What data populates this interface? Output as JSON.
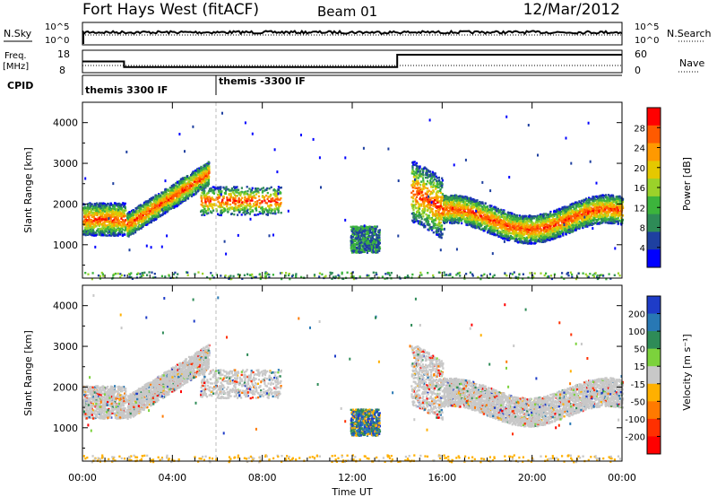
{
  "header": {
    "station": "Fort Hays West (fitACF)",
    "beam": "Beam 01",
    "date": "12/Mar/2012"
  },
  "nsky_panel": {
    "left_label": "N.Sky",
    "left_ticks": [
      "10^5",
      "10^0"
    ],
    "right_label": "N.Search",
    "right_ticks": [
      "10^5",
      "10^0"
    ]
  },
  "freq_panel": {
    "left_label_line1": "Freq.",
    "left_label_line2": "[MHz]",
    "left_ticks": [
      "18",
      "8"
    ],
    "right_label": "Nave",
    "right_ticks": [
      "60",
      "0"
    ]
  },
  "cpid_panel": {
    "label": "CPID",
    "segments": [
      {
        "text": "themis 3300 IF",
        "start_hour": 0,
        "end_hour": 6
      },
      {
        "text": "themis -3300 IF",
        "start_hour": 6,
        "end_hour": 24
      }
    ]
  },
  "xaxis": {
    "label": "Time UT",
    "ticks": [
      "00:00",
      "04:00",
      "08:00",
      "12:00",
      "16:00",
      "20:00",
      "00:00"
    ]
  },
  "power_panel": {
    "ylabel": "Slant Range [km]",
    "yticks": [
      "1000",
      "2000",
      "3000",
      "4000"
    ],
    "colorbar_title": "Power [dB]",
    "colorbar_labels": [
      "28",
      "24",
      "20",
      "16",
      "12",
      "8",
      "4"
    ],
    "colors": [
      "#ff0000",
      "#ff5a00",
      "#ff9900",
      "#e5c800",
      "#9bd22a",
      "#3cb43c",
      "#2e8b57",
      "#1e40a0",
      "#0000ff"
    ]
  },
  "velocity_panel": {
    "ylabel": "Slant Range [km]",
    "yticks": [
      "1000",
      "2000",
      "3000",
      "4000"
    ],
    "colorbar_title": "Velocity [m s⁻¹]",
    "colorbar_labels": [
      "200",
      "100",
      "50",
      "15",
      "-15",
      "-50",
      "-100",
      "-200"
    ],
    "colors": [
      "#1e3cc8",
      "#2878b4",
      "#2e8b57",
      "#7cd23c",
      "#c8c8c8",
      "#ffb000",
      "#ff7a00",
      "#ff3000",
      "#ff0000"
    ]
  },
  "chart_data": {
    "type": "heatmap",
    "x_range_hours": [
      0,
      24
    ],
    "y_range_km": [
      180,
      4500
    ],
    "freq_mhz": [
      {
        "start_hour": 0.0,
        "end_hour": 1.85,
        "value": 13
      },
      {
        "start_hour": 1.85,
        "end_hour": 14.0,
        "value": 10.5
      },
      {
        "start_hour": 14.0,
        "end_hour": 24.0,
        "value": 16
      }
    ],
    "nave": 20,
    "regions": [
      {
        "name": "early-band",
        "t0": 0.0,
        "t1": 1.9,
        "r0": 1450,
        "r1": 2250,
        "core": 1650
      },
      {
        "name": "rising-arc",
        "t0": 1.95,
        "t1": 5.6,
        "r0": 1400,
        "r1": 3100,
        "core": 1700
      },
      {
        "name": "scattered-arc",
        "t0": 5.2,
        "t1": 8.8,
        "r0": 1800,
        "r1": 2500,
        "core": 2100
      },
      {
        "name": "midday-patch",
        "t0": 11.9,
        "t1": 13.2,
        "r0": 950,
        "r1": 1600,
        "core": 1150
      },
      {
        "name": "late-band",
        "t0": 14.6,
        "t1": 24.0,
        "r0": 1300,
        "r1": 3600,
        "core": 1600
      },
      {
        "name": "ground-line",
        "t0": 0.0,
        "t1": 24.0,
        "r0": 180,
        "r1": 360,
        "core": 260
      }
    ]
  }
}
